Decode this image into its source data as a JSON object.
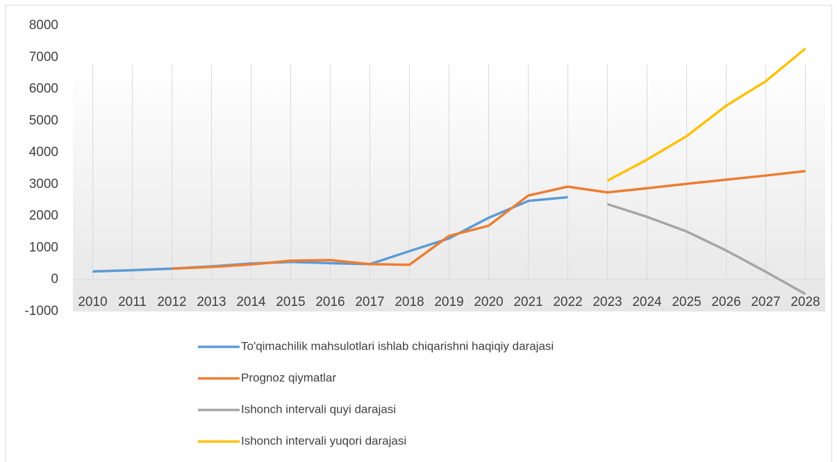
{
  "chart_data": {
    "type": "line",
    "categories": [
      "2010",
      "2011",
      "2012",
      "2013",
      "2014",
      "2015",
      "2016",
      "2017",
      "2018",
      "2019",
      "2020",
      "2021",
      "2022",
      "2023",
      "2024",
      "2025",
      "2026",
      "2027",
      "2028"
    ],
    "series": [
      {
        "name": "To'qimachilik mahsulotlari ishlab chiqarishni haqiqiy darajasi",
        "color": "#5b9bd5",
        "values": [
          260,
          300,
          350,
          420,
          510,
          560,
          520,
          490,
          900,
          1300,
          1950,
          2480,
          2600,
          null,
          null,
          null,
          null,
          null,
          null
        ]
      },
      {
        "name": "Prognoz qiymatlar",
        "color": "#ed7d31",
        "values": [
          null,
          null,
          350,
          400,
          480,
          600,
          620,
          490,
          470,
          1380,
          1700,
          2650,
          2930,
          2750,
          2880,
          3020,
          3150,
          3280,
          3420
        ]
      },
      {
        "name": "Ishonch intervali quyi darajasi",
        "color": "#a5a5a5",
        "values": [
          null,
          null,
          null,
          null,
          null,
          null,
          null,
          null,
          null,
          null,
          null,
          null,
          null,
          2380,
          1980,
          1520,
          920,
          250,
          -450
        ]
      },
      {
        "name": "Ishonch intervali yuqori darajasi",
        "color": "#ffc000",
        "values": [
          null,
          null,
          null,
          null,
          null,
          null,
          null,
          null,
          null,
          null,
          null,
          null,
          null,
          3120,
          3780,
          4520,
          5480,
          6250,
          7280
        ]
      }
    ],
    "ylim": [
      -1000,
      8000
    ],
    "yticks": [
      -1000,
      0,
      1000,
      2000,
      3000,
      4000,
      5000,
      6000,
      7000,
      8000
    ],
    "xgrid": true,
    "legend": "bottom"
  }
}
